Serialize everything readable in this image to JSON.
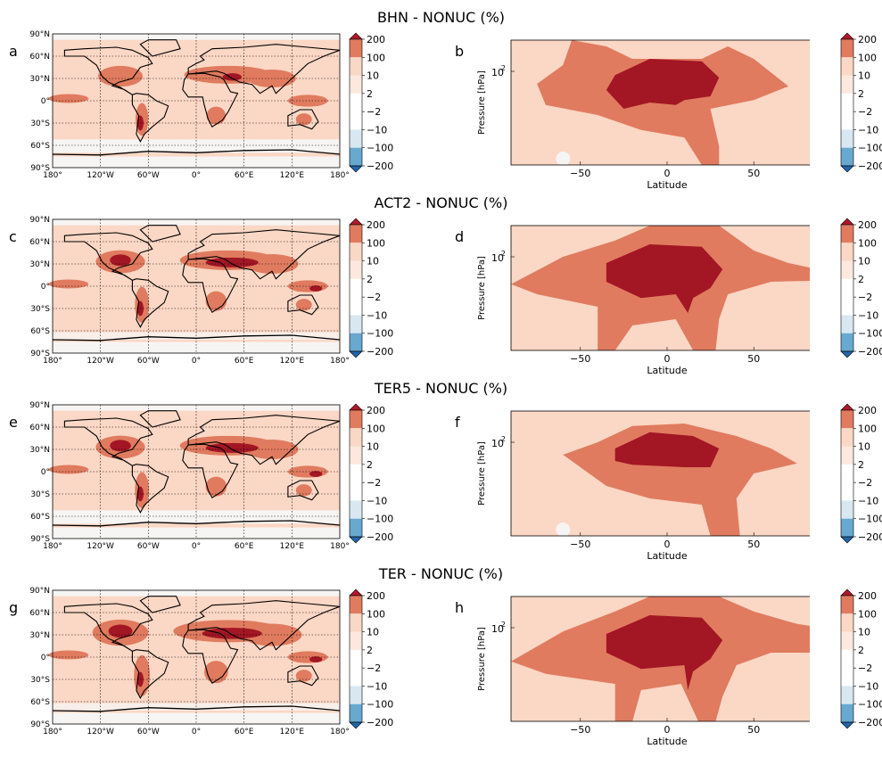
{
  "figure": {
    "colorbar": {
      "ticks": [
        "200",
        "100",
        "10",
        "2",
        "−2",
        "−10",
        "−100",
        "−200"
      ],
      "colors": [
        "#b2182b",
        "#e07b5f",
        "#fbd7c5",
        "#ffffff",
        "#ffffff",
        "#d8e8f2",
        "#67a9cf",
        "#2166ac"
      ]
    },
    "map": {
      "lon_ticks": [
        "180°",
        "120°W",
        "60°W",
        "0°",
        "60°E",
        "120°E",
        "180°"
      ],
      "lat_ticks": [
        "90°N",
        "60°N",
        "30°N",
        "0°",
        "30°S",
        "60°S",
        "90°S"
      ]
    },
    "zonal": {
      "xlabel": "Latitude",
      "ylabel": "Pressure [hPa]",
      "x_ticks": [
        "−50",
        "0",
        "50"
      ],
      "y_tick": "10",
      "y_tick_exp": "2"
    }
  },
  "chart_data": [
    {
      "type": "heatmap",
      "panel": "a",
      "title": "BHN - NONUC (%)",
      "kind": "map"
    },
    {
      "type": "heatmap",
      "panel": "b",
      "kind": "zonal",
      "xlim": [
        -90,
        90
      ],
      "xlabel": "Latitude",
      "ylabel": "Pressure [hPa]"
    },
    {
      "type": "heatmap",
      "panel": "c",
      "title": "ACT2 - NONUC (%)",
      "kind": "map"
    },
    {
      "type": "heatmap",
      "panel": "d",
      "kind": "zonal",
      "xlim": [
        -90,
        90
      ],
      "xlabel": "Latitude",
      "ylabel": "Pressure [hPa]"
    },
    {
      "type": "heatmap",
      "panel": "e",
      "title": "TER5 - NONUC (%)",
      "kind": "map"
    },
    {
      "type": "heatmap",
      "panel": "f",
      "kind": "zonal",
      "xlim": [
        -90,
        90
      ],
      "xlabel": "Latitude",
      "ylabel": "Pressure [hPa]"
    },
    {
      "type": "heatmap",
      "panel": "g",
      "title": "TER - NONUC (%)",
      "kind": "map"
    },
    {
      "type": "heatmap",
      "panel": "h",
      "kind": "zonal",
      "xlim": [
        -90,
        90
      ],
      "xlabel": "Latitude",
      "ylabel": "Pressure [hPa]"
    }
  ]
}
